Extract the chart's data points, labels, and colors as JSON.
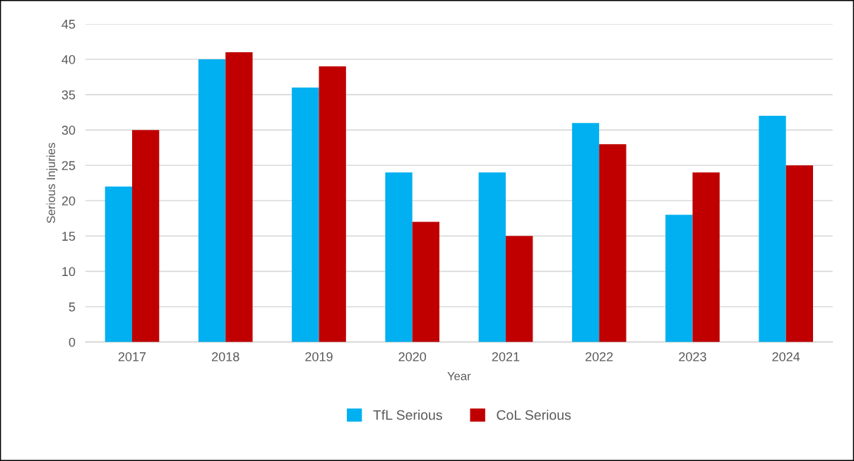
{
  "chart_data": {
    "type": "bar",
    "xlabel": "Year",
    "ylabel": "Serious Injuries",
    "categories": [
      "2017",
      "2018",
      "2019",
      "2020",
      "2021",
      "2022",
      "2023",
      "2024"
    ],
    "series": [
      {
        "name": "TfL Serious",
        "color": "#00b0f0",
        "values": [
          22,
          40,
          36,
          24,
          24,
          31,
          18,
          32
        ]
      },
      {
        "name": "CoL Serious",
        "color": "#c00000",
        "values": [
          30,
          41,
          39,
          17,
          15,
          28,
          24,
          25
        ]
      }
    ],
    "ylim": [
      0,
      45
    ],
    "yticks": [
      0,
      5,
      10,
      15,
      20,
      25,
      30,
      35,
      40,
      45
    ],
    "grid": "y",
    "legend": "bottom"
  }
}
